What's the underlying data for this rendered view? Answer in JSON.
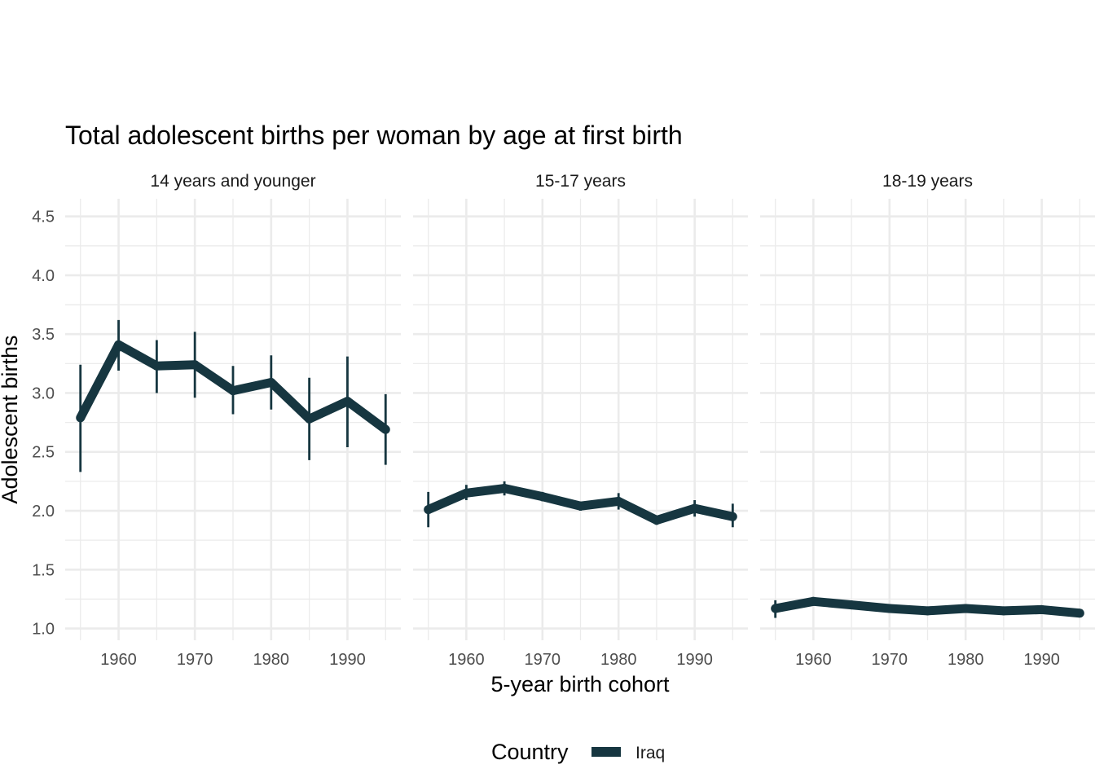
{
  "chart_data": {
    "type": "line",
    "title": "Total adolescent births per woman by age at first birth",
    "xlabel": "5-year birth cohort",
    "ylabel": "Adolescent births",
    "ylim": [
      0.9,
      4.65
    ],
    "xlim": [
      1953,
      1997
    ],
    "y_ticks": [
      1.0,
      1.5,
      2.0,
      2.5,
      3.0,
      3.5,
      4.0,
      4.5
    ],
    "y_tick_labels": [
      "1.0",
      "1.5",
      "2.0",
      "2.5",
      "3.0",
      "3.5",
      "4.0",
      "4.5"
    ],
    "x_ticks": [
      1960,
      1970,
      1980,
      1990
    ],
    "x_tick_labels": [
      "1960",
      "1970",
      "1980",
      "1990"
    ],
    "x_minor": [
      1955,
      1965,
      1975,
      1985,
      1995
    ],
    "grid": true,
    "legend": {
      "title": "Country",
      "position": "bottom",
      "entries": [
        "Iraq"
      ]
    },
    "color": "#163640",
    "x": [
      1955,
      1960,
      1965,
      1970,
      1975,
      1980,
      1985,
      1990,
      1995
    ],
    "facets": [
      {
        "label": "14 years and younger",
        "series": [
          {
            "name": "Iraq",
            "values": [
              2.79,
              3.41,
              3.23,
              3.24,
              3.02,
              3.09,
              2.78,
              2.93,
              2.69
            ],
            "lower": [
              2.33,
              3.19,
              3.0,
              2.96,
              2.82,
              2.86,
              2.43,
              2.54,
              2.39
            ],
            "upper": [
              3.24,
              3.62,
              3.45,
              3.52,
              3.23,
              3.32,
              3.13,
              3.31,
              2.99
            ]
          }
        ]
      },
      {
        "label": "15-17 years",
        "series": [
          {
            "name": "Iraq",
            "values": [
              2.01,
              2.15,
              2.19,
              2.12,
              2.04,
              2.08,
              1.92,
              2.02,
              1.95
            ],
            "lower": [
              1.86,
              2.09,
              2.13,
              2.08,
              2.0,
              2.01,
              1.88,
              1.95,
              1.86
            ],
            "upper": [
              2.16,
              2.22,
              2.25,
              2.16,
              2.07,
              2.15,
              1.96,
              2.09,
              2.06
            ]
          }
        ]
      },
      {
        "label": "18-19 years",
        "series": [
          {
            "name": "Iraq",
            "values": [
              1.17,
              1.23,
              1.2,
              1.17,
              1.15,
              1.17,
              1.15,
              1.16,
              1.13
            ],
            "lower": [
              1.09,
              1.2,
              1.18,
              1.16,
              1.14,
              1.16,
              1.14,
              1.15,
              1.1
            ],
            "upper": [
              1.24,
              1.26,
              1.22,
              1.18,
              1.16,
              1.18,
              1.16,
              1.18,
              1.16
            ]
          }
        ]
      }
    ]
  }
}
